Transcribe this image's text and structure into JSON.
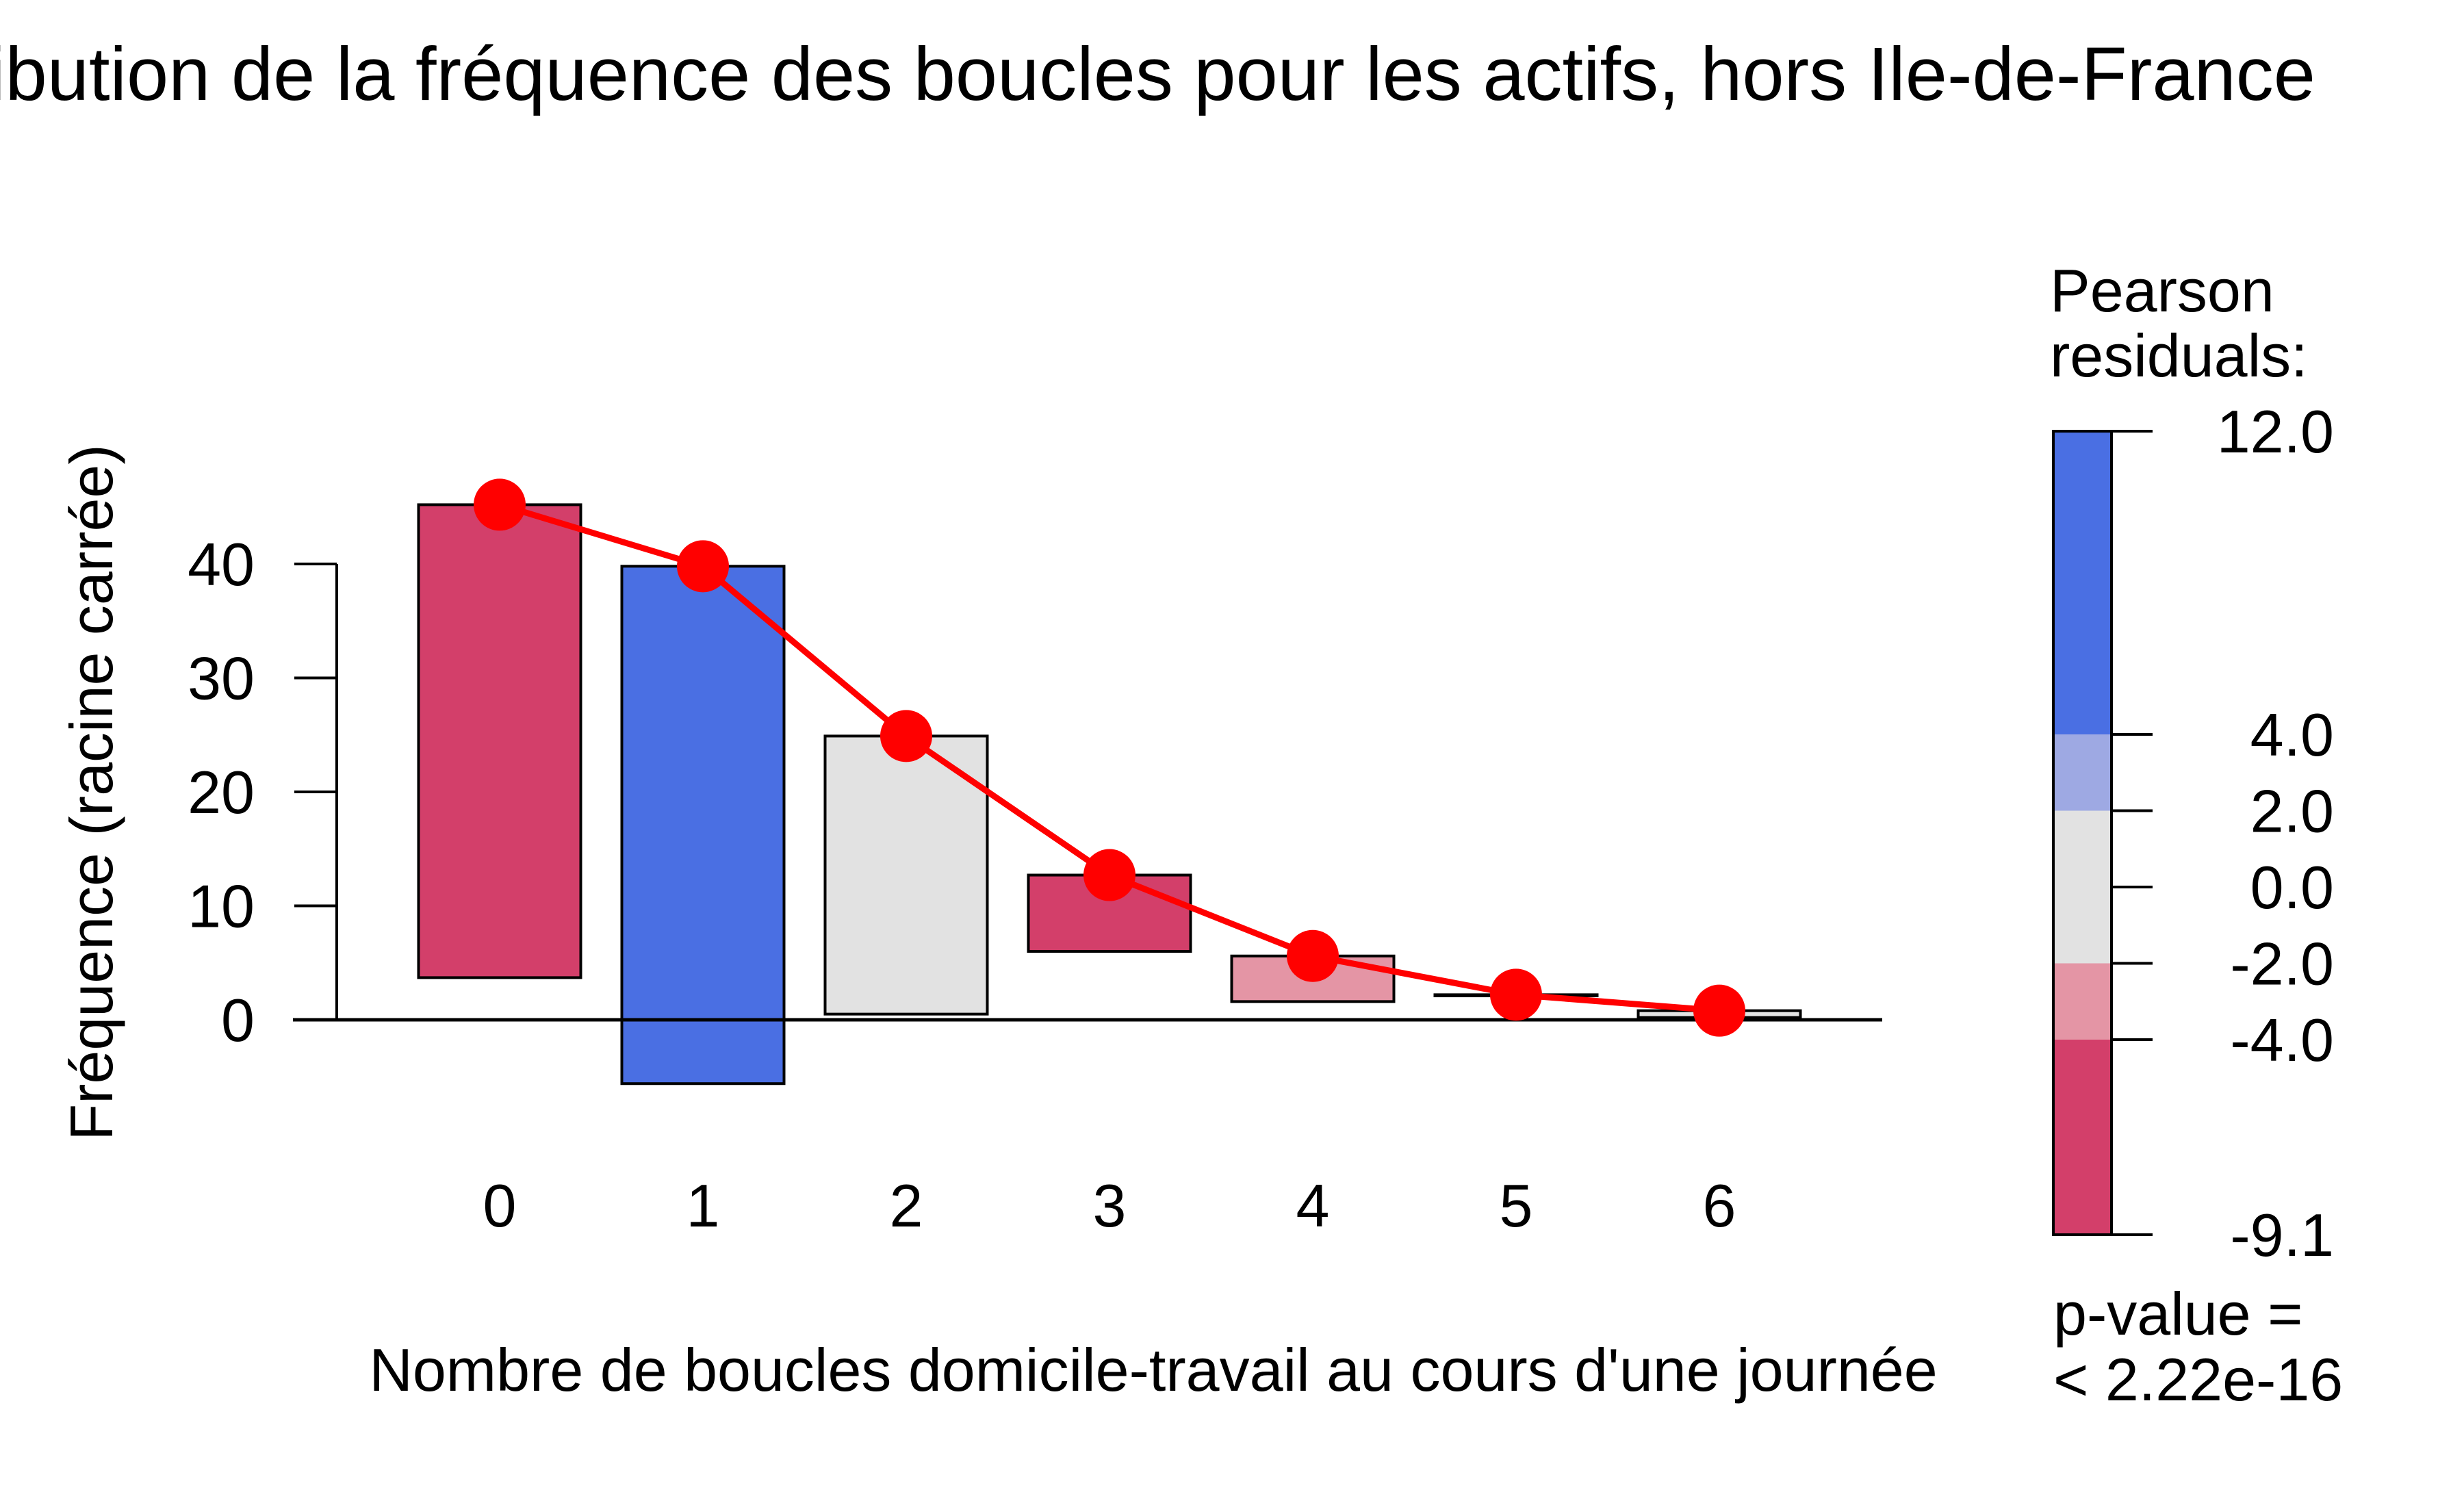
{
  "chart_data": {
    "type": "bar",
    "title": "Distribution de la fréquence des boucles pour les actifs, hors Ile-de-France",
    "xlabel": "Nombre de boucles domicile-travail au cours d'une journée",
    "ylabel": "Fréquence (racine carrée)",
    "categories": [
      "0",
      "1",
      "2",
      "3",
      "4",
      "5",
      "6"
    ],
    "y_ticks": [
      "0",
      "10",
      "20",
      "30",
      "40"
    ],
    "ylim": [
      -8,
      48
    ],
    "rootogram": {
      "expected": [
        45.2,
        39.8,
        24.9,
        12.7,
        5.6,
        2.2,
        0.8
      ],
      "bar_bottom": [
        3.7,
        -5.6,
        0.5,
        6.0,
        1.6,
        2.1,
        0.2
      ],
      "residual_colors": [
        "#d33f6a",
        "#4a6fe3",
        "#e2e2e2",
        "#d33f6a",
        "#e495a5",
        "#e2e2e2",
        "#e2e2e2"
      ]
    },
    "curve_color": "#ff0000",
    "legend": {
      "title_line1": "Pearson",
      "title_line2": "residuals:",
      "tick_values": [
        12.0,
        4.0,
        2.0,
        0.0,
        -2.0,
        -4.0,
        -9.1
      ],
      "tick_labels": [
        "12.0",
        "4.0",
        "2.0",
        "0.0",
        "-2.0",
        "-4.0",
        "-9.1"
      ],
      "bands": [
        {
          "from": 4.0,
          "to": 12.0,
          "color": "#4a6fe3"
        },
        {
          "from": 2.0,
          "to": 4.0,
          "color": "#9ea9e3"
        },
        {
          "from": -2.0,
          "to": 2.0,
          "color": "#e2e2e2"
        },
        {
          "from": -4.0,
          "to": -2.0,
          "color": "#e495a5"
        },
        {
          "from": -9.1,
          "to": -4.0,
          "color": "#d33f6a"
        }
      ],
      "pvalue_line1": "p-value =",
      "pvalue_line2": "< 2.22e-16"
    }
  }
}
